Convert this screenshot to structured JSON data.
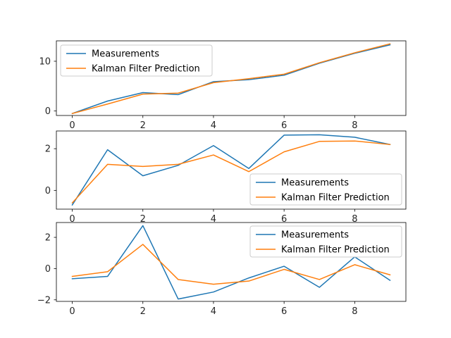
{
  "chart_data": [
    {
      "type": "line",
      "x": [
        0,
        1,
        2,
        3,
        4,
        5,
        6,
        7,
        8,
        9
      ],
      "xlim": [
        -0.45,
        9.45
      ],
      "ylim": [
        -0.9,
        14.1
      ],
      "xticks": [
        0,
        2,
        4,
        6,
        8
      ],
      "yticks": [
        0,
        10
      ],
      "legend_position": "top-left",
      "grid": false,
      "series": [
        {
          "name": "Measurements",
          "color": "#1f77b4",
          "values": [
            -0.5,
            2.0,
            3.7,
            3.3,
            5.9,
            6.3,
            7.2,
            9.6,
            11.6,
            13.3
          ]
        },
        {
          "name": "Kalman Filter Prediction",
          "color": "#ff7f0e",
          "values": [
            -0.5,
            1.4,
            3.4,
            3.6,
            5.7,
            6.5,
            7.4,
            9.7,
            11.7,
            13.5
          ]
        }
      ]
    },
    {
      "type": "line",
      "x": [
        0,
        1,
        2,
        3,
        4,
        5,
        6,
        7,
        8,
        9
      ],
      "xlim": [
        -0.45,
        9.45
      ],
      "ylim": [
        -0.9,
        2.85
      ],
      "xticks": [
        0,
        2,
        4,
        6,
        8
      ],
      "yticks": [
        0,
        2
      ],
      "legend_position": "bottom-right",
      "grid": false,
      "series": [
        {
          "name": "Measurements",
          "color": "#1f77b4",
          "values": [
            -0.7,
            1.95,
            0.7,
            1.2,
            2.15,
            1.05,
            2.65,
            2.67,
            2.55,
            2.2
          ]
        },
        {
          "name": "Kalman Filter Prediction",
          "color": "#ff7f0e",
          "values": [
            -0.6,
            1.25,
            1.15,
            1.25,
            1.7,
            0.9,
            1.85,
            2.35,
            2.37,
            2.2
          ]
        }
      ]
    },
    {
      "type": "line",
      "x": [
        0,
        1,
        2,
        3,
        4,
        5,
        6,
        7,
        8,
        9
      ],
      "xlim": [
        -0.45,
        9.45
      ],
      "ylim": [
        -2.1,
        2.95
      ],
      "xticks": [
        0,
        2,
        4,
        6,
        8
      ],
      "yticks": [
        -2,
        0,
        2
      ],
      "legend_position": "top-right",
      "grid": false,
      "series": [
        {
          "name": "Measurements",
          "color": "#1f77b4",
          "values": [
            -0.65,
            -0.5,
            2.75,
            -1.95,
            -1.5,
            -0.6,
            0.15,
            -1.2,
            0.75,
            -0.75
          ]
        },
        {
          "name": "Kalman Filter Prediction",
          "color": "#ff7f0e",
          "values": [
            -0.5,
            -0.2,
            1.55,
            -0.7,
            -1.0,
            -0.8,
            -0.05,
            -0.7,
            0.25,
            -0.4
          ]
        }
      ]
    }
  ]
}
